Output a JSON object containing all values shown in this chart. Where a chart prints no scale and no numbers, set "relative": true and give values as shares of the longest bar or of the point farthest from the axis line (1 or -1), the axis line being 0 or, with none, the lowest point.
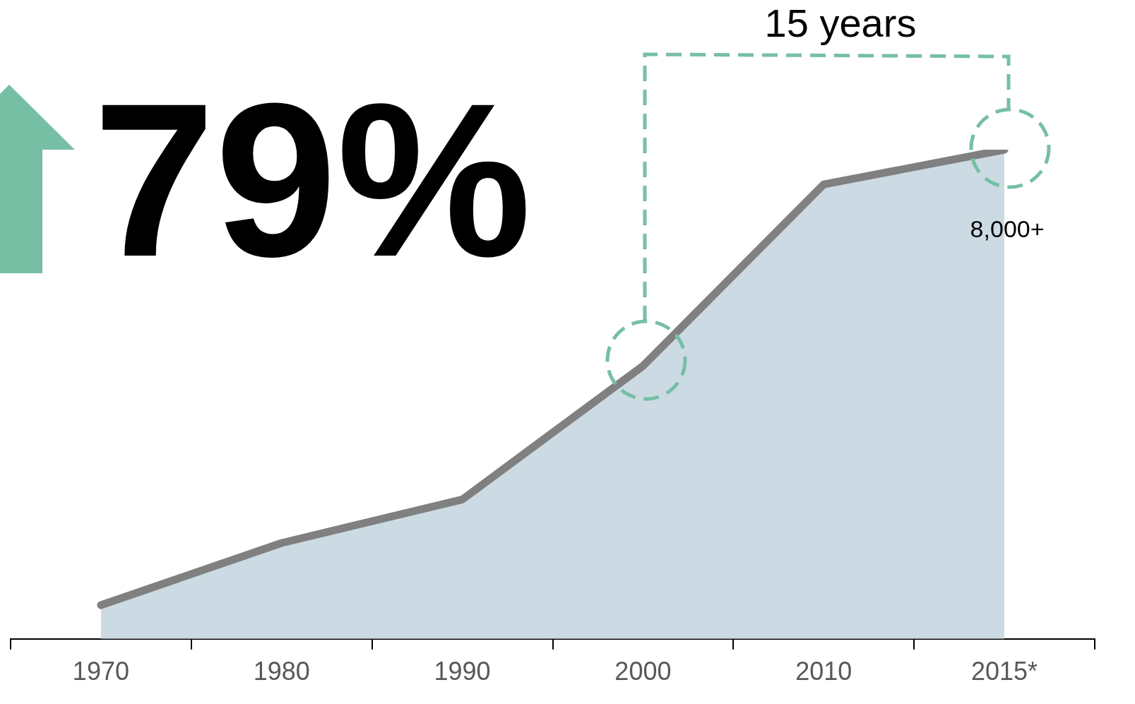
{
  "chart_data": {
    "type": "area",
    "relative": true,
    "grid": false,
    "legend": false,
    "marker": "none",
    "annotations": [
      "79%",
      "15 years",
      {
        "text": "8,000+",
        "x": "2015*",
        "y": 1
      }
    ],
    "categories": [
      "1970",
      "1980",
      "1990",
      "2000",
      "2010",
      "2015*"
    ],
    "series": [
      {
        "color": "#ccdae4",
        "values": [
          0.069,
          0.196,
          0.285,
          0.558,
          0.929,
          1
        ]
      }
    ]
  }
}
